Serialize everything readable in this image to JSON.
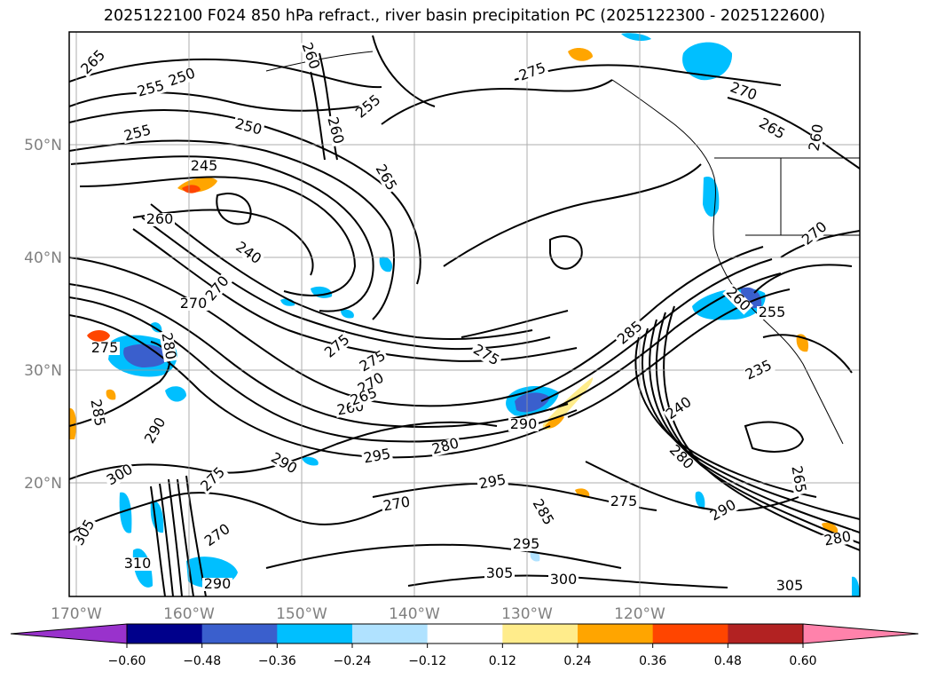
{
  "chart_data": {
    "type": "contour",
    "title": "2025122100 F024 850 hPa refract., river basin precipitation PC (2025122300 - 2025122600)",
    "lat_labels": [
      "50°N",
      "40°N",
      "30°N",
      "20°N"
    ],
    "lat_values": [
      50,
      40,
      30,
      20
    ],
    "lon_labels": [
      "170°W",
      "160°W",
      "150°W",
      "140°W",
      "130°W",
      "120°W"
    ],
    "lon_values": [
      -170,
      -160,
      -150,
      -140,
      -130,
      -120
    ],
    "colorbar": {
      "ticks": [
        "−0.60",
        "−0.48",
        "−0.36",
        "−0.24",
        "−0.12",
        "0.12",
        "0.24",
        "0.36",
        "0.48",
        "0.60"
      ],
      "levels": [
        -0.6,
        -0.48,
        -0.36,
        -0.24,
        -0.12,
        0.12,
        0.24,
        0.36,
        0.48,
        0.6
      ],
      "colors": [
        "#9932cc",
        "#00008b",
        "#3a5fcd",
        "#00bfff",
        "#b0e2ff",
        "#ffffff",
        "#ffec8b",
        "#ffa500",
        "#ff4500",
        "#b22222",
        "#ff82ab"
      ],
      "extend": "both"
    },
    "contour_labels": [
      "265",
      "250",
      "255",
      "260",
      "255",
      "250",
      "255",
      "260",
      "265",
      "245",
      "260",
      "240",
      "270",
      "270",
      "275",
      "280",
      "275",
      "270",
      "275",
      "260",
      "265",
      "275",
      "285",
      "290",
      "240",
      "235",
      "255",
      "260",
      "270",
      "270",
      "265",
      "260",
      "280",
      "285",
      "290",
      "295",
      "300",
      "290",
      "295",
      "280",
      "275",
      "270",
      "270",
      "305",
      "310",
      "290",
      "275",
      "285",
      "295",
      "300",
      "305",
      "290",
      "280",
      "265",
      "275",
      "305"
    ]
  }
}
